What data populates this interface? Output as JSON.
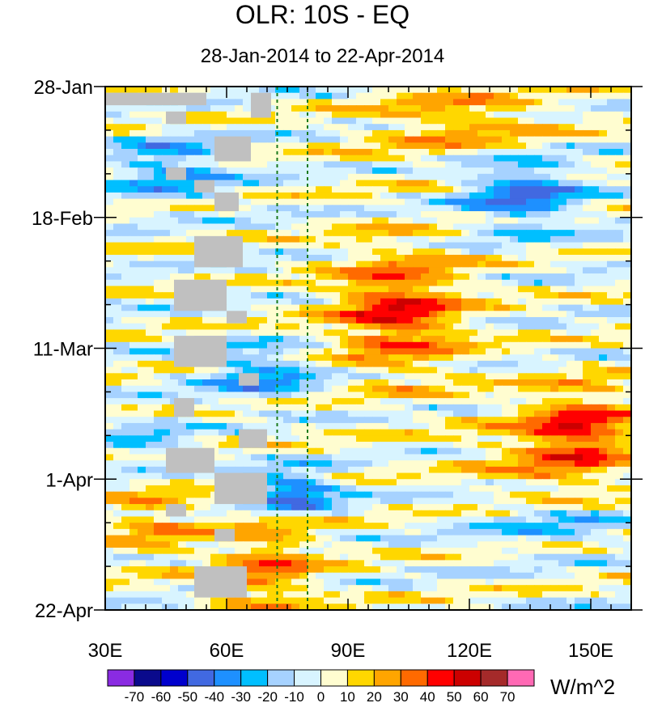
{
  "chart_data": {
    "type": "heatmap",
    "title": "OLR: 10S - EQ",
    "subtitle": "28-Jan-2014 to 22-Apr-2014",
    "xlabel": "",
    "ylabel": "",
    "xlim": [
      30,
      160
    ],
    "ylim_days_from_start": [
      0,
      84
    ],
    "x_ticks": [
      {
        "value": 30,
        "label": "30E"
      },
      {
        "value": 60,
        "label": "60E"
      },
      {
        "value": 90,
        "label": "90E"
      },
      {
        "value": 120,
        "label": "120E"
      },
      {
        "value": 150,
        "label": "150E"
      }
    ],
    "y_ticks": [
      {
        "value": 0,
        "label": "28-Jan"
      },
      {
        "value": 21,
        "label": "18-Feb"
      },
      {
        "value": 42,
        "label": "11-Mar"
      },
      {
        "value": 63,
        "label": "1-Apr"
      },
      {
        "value": 84,
        "label": "22-Apr"
      }
    ],
    "reference_lines_lon": [
      72.5,
      80
    ],
    "colorbar": {
      "units": "W/m^2",
      "labels": [
        "-70",
        "-60",
        "-50",
        "-40",
        "-30",
        "-20",
        "-10",
        "0",
        "10",
        "20",
        "30",
        "40",
        "50",
        "60",
        "70"
      ],
      "colors": [
        "#8a2be2",
        "#0a0a8c",
        "#0000cd",
        "#4169e1",
        "#1e90ff",
        "#00bfff",
        "#a6d2ff",
        "#d8f4ff",
        "#fffdd0",
        "#ffd700",
        "#ffa500",
        "#ff6a00",
        "#ff0000",
        "#cc0000",
        "#a52a2a",
        "#ff69b4"
      ]
    },
    "missing_blocks": [
      {
        "lon0": 30,
        "lon1": 55,
        "day0": 1,
        "day1": 3
      },
      {
        "lon0": 45,
        "lon1": 50,
        "day0": 4,
        "day1": 6
      },
      {
        "lon0": 66,
        "lon1": 71,
        "day0": 1,
        "day1": 5
      },
      {
        "lon0": 57,
        "lon1": 66,
        "day0": 8,
        "day1": 12
      },
      {
        "lon0": 45,
        "lon1": 50,
        "day0": 13,
        "day1": 15
      },
      {
        "lon0": 52,
        "lon1": 57,
        "day0": 15,
        "day1": 17
      },
      {
        "lon0": 57,
        "lon1": 63,
        "day0": 17,
        "day1": 20
      },
      {
        "lon0": 52,
        "lon1": 64,
        "day0": 24,
        "day1": 29
      },
      {
        "lon0": 47,
        "lon1": 60,
        "day0": 31,
        "day1": 36
      },
      {
        "lon0": 60,
        "lon1": 65,
        "day0": 36,
        "day1": 38
      },
      {
        "lon0": 47,
        "lon1": 60,
        "day0": 40,
        "day1": 45
      },
      {
        "lon0": 63,
        "lon1": 68,
        "day0": 46,
        "day1": 48
      },
      {
        "lon0": 47,
        "lon1": 52,
        "day0": 50,
        "day1": 53
      },
      {
        "lon0": 63,
        "lon1": 70,
        "day0": 55,
        "day1": 58
      },
      {
        "lon0": 45,
        "lon1": 57,
        "day0": 58,
        "day1": 62
      },
      {
        "lon0": 57,
        "lon1": 70,
        "day0": 62,
        "day1": 67
      },
      {
        "lon0": 45,
        "lon1": 50,
        "day0": 67,
        "day1": 69
      },
      {
        "lon0": 57,
        "lon1": 62,
        "day0": 71,
        "day1": 73
      },
      {
        "lon0": 52,
        "lon1": 65,
        "day0": 77,
        "day1": 82
      }
    ]
  }
}
